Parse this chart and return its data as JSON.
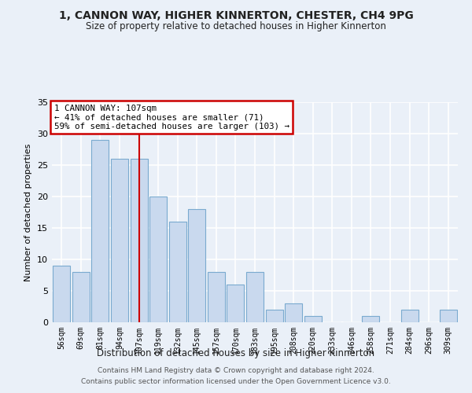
{
  "title": "1, CANNON WAY, HIGHER KINNERTON, CHESTER, CH4 9PG",
  "subtitle": "Size of property relative to detached houses in Higher Kinnerton",
  "xlabel": "Distribution of detached houses by size in Higher Kinnerton",
  "ylabel": "Number of detached properties",
  "categories": [
    "56sqm",
    "69sqm",
    "81sqm",
    "94sqm",
    "107sqm",
    "119sqm",
    "132sqm",
    "145sqm",
    "157sqm",
    "170sqm",
    "183sqm",
    "195sqm",
    "208sqm",
    "220sqm",
    "233sqm",
    "246sqm",
    "258sqm",
    "271sqm",
    "284sqm",
    "296sqm",
    "309sqm"
  ],
  "values": [
    9,
    8,
    29,
    26,
    26,
    20,
    16,
    18,
    8,
    6,
    8,
    2,
    3,
    1,
    0,
    0,
    1,
    0,
    2,
    0,
    2
  ],
  "bar_color": "#c9d9ee",
  "bar_edge_color": "#7aaacf",
  "highlight_bar_index": 4,
  "highlight_line_color": "#cc0000",
  "annotation_line1": "1 CANNON WAY: 107sqm",
  "annotation_line2": "← 41% of detached houses are smaller (71)",
  "annotation_line3": "59% of semi-detached houses are larger (103) →",
  "annotation_box_facecolor": "#ffffff",
  "annotation_box_edgecolor": "#cc0000",
  "ylim": [
    0,
    35
  ],
  "yticks": [
    0,
    5,
    10,
    15,
    20,
    25,
    30,
    35
  ],
  "background_color": "#eaf0f8",
  "grid_color": "#ffffff",
  "footer1": "Contains HM Land Registry data © Crown copyright and database right 2024.",
  "footer2": "Contains public sector information licensed under the Open Government Licence v3.0."
}
